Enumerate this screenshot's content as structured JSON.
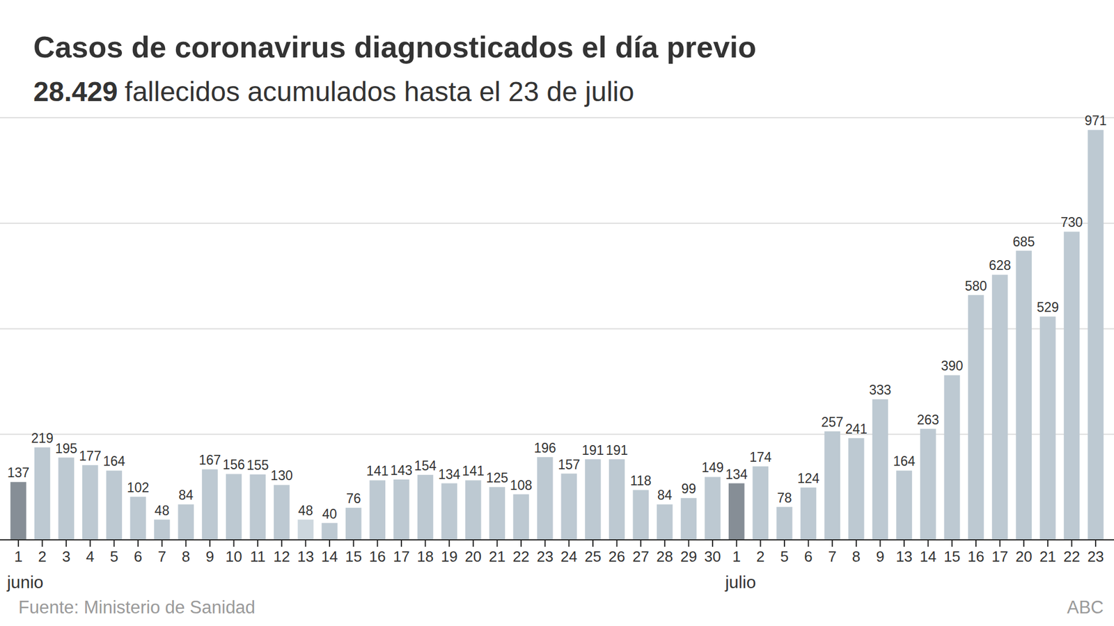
{
  "chart_data": {
    "type": "bar",
    "title": "Casos de coronavirus diagnosticados el día previo",
    "subtitle_highlight": "28.429",
    "subtitle": "fallecidos acumulados hasta el 23 de julio",
    "source": "Fuente: Ministerio de Sanidad",
    "credit": "ABC",
    "categories": [
      "1",
      "2",
      "3",
      "4",
      "5",
      "6",
      "7",
      "8",
      "9",
      "10",
      "11",
      "12",
      "13",
      "14",
      "15",
      "16",
      "17",
      "18",
      "19",
      "20",
      "21",
      "22",
      "23",
      "24",
      "25",
      "26",
      "27",
      "28",
      "29",
      "30",
      "1",
      "2",
      "5",
      "6",
      "7",
      "8",
      "9",
      "13",
      "14",
      "15",
      "16",
      "17",
      "20",
      "21",
      "22",
      "23"
    ],
    "values": [
      137,
      219,
      195,
      177,
      164,
      102,
      48,
      84,
      167,
      156,
      155,
      130,
      48,
      40,
      76,
      141,
      143,
      154,
      134,
      141,
      125,
      108,
      196,
      157,
      191,
      191,
      118,
      84,
      99,
      149,
      134,
      174,
      78,
      124,
      257,
      241,
      333,
      164,
      263,
      390,
      580,
      628,
      685,
      529,
      730,
      971
    ],
    "colors": [
      "#868e96",
      "#bdc9d2",
      "#bdc9d2",
      "#bdc9d2",
      "#bdc9d2",
      "#bdc9d2",
      "#bdc9d2",
      "#bdc9d2",
      "#bdc9d2",
      "#bdc9d2",
      "#bdc9d2",
      "#bdc9d2",
      "#cdd7de",
      "#bdc9d2",
      "#bdc9d2",
      "#bdc9d2",
      "#bdc9d2",
      "#bdc9d2",
      "#bdc9d2",
      "#bdc9d2",
      "#bdc9d2",
      "#bdc9d2",
      "#bdc9d2",
      "#bdc9d2",
      "#bdc9d2",
      "#bdc9d2",
      "#bdc9d2",
      "#bdc9d2",
      "#bdc9d2",
      "#bdc9d2",
      "#868e96",
      "#bdc9d2",
      "#bdc9d2",
      "#bdc9d2",
      "#bdc9d2",
      "#bdc9d2",
      "#bdc9d2",
      "#bdc9d2",
      "#bdc9d2",
      "#bdc9d2",
      "#bdc9d2",
      "#bdc9d2",
      "#bdc9d2",
      "#bdc9d2",
      "#bdc9d2",
      "#bdc9d2"
    ],
    "month_labels": [
      {
        "label": "junio",
        "index": 0
      },
      {
        "label": "julio",
        "index": 30
      }
    ],
    "ylim": [
      0,
      1000
    ],
    "yticks": [
      0,
      250,
      500,
      750,
      1000
    ],
    "grid": true,
    "data_labels": true,
    "tick_labels": "x"
  }
}
